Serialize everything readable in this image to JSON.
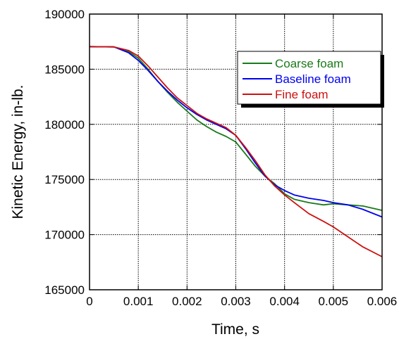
{
  "chart_data": {
    "type": "line",
    "title": "",
    "xlabel": "Time, s",
    "ylabel": "Kinetic Energy, in-lb.",
    "xlim": [
      0,
      0.006
    ],
    "ylim": [
      165000,
      190000
    ],
    "xticks": [
      0,
      0.001,
      0.002,
      0.003,
      0.004,
      0.005,
      0.006
    ],
    "xtick_labels": [
      "0",
      "0.001",
      "0.002",
      "0.003",
      "0.004",
      "0.005",
      "0.006"
    ],
    "yticks": [
      165000,
      170000,
      175000,
      180000,
      185000,
      190000
    ],
    "ytick_labels": [
      "165000",
      "170000",
      "175000",
      "180000",
      "185000",
      "190000"
    ],
    "grid": true,
    "legend_position": "top-right",
    "series": [
      {
        "name": "Coarse foam",
        "color": "#1a7a1a",
        "x": [
          0,
          0.0005,
          0.0008,
          0.001,
          0.0012,
          0.0014,
          0.0016,
          0.0018,
          0.002,
          0.0022,
          0.0024,
          0.0026,
          0.0028,
          0.003,
          0.0032,
          0.0034,
          0.0036,
          0.0038,
          0.004,
          0.0042,
          0.0045,
          0.0048,
          0.005,
          0.0053,
          0.0056,
          0.006
        ],
        "values": [
          187050,
          187020,
          186600,
          186000,
          185000,
          183900,
          182900,
          182000,
          181200,
          180400,
          179800,
          179300,
          178900,
          178400,
          177300,
          176200,
          175300,
          174600,
          173700,
          173200,
          172900,
          172700,
          172800,
          172700,
          172600,
          172200
        ]
      },
      {
        "name": "Baseline foam",
        "color": "#0000ee",
        "x": [
          0,
          0.0005,
          0.0008,
          0.001,
          0.0012,
          0.0014,
          0.0016,
          0.0018,
          0.002,
          0.0022,
          0.0024,
          0.0026,
          0.0028,
          0.003,
          0.0032,
          0.0034,
          0.0036,
          0.0038,
          0.004,
          0.0042,
          0.0045,
          0.0048,
          0.005,
          0.0053,
          0.0056,
          0.006
        ],
        "values": [
          187050,
          187020,
          186500,
          185800,
          184900,
          183900,
          183000,
          182200,
          181500,
          180900,
          180400,
          180000,
          179600,
          179000,
          177800,
          176500,
          175300,
          174500,
          174000,
          173600,
          173300,
          173100,
          172900,
          172700,
          172300,
          171600
        ]
      },
      {
        "name": "Fine foam",
        "color": "#cc1111",
        "x": [
          0,
          0.0005,
          0.0008,
          0.001,
          0.0012,
          0.0014,
          0.0016,
          0.0018,
          0.002,
          0.0022,
          0.0024,
          0.0026,
          0.0028,
          0.003,
          0.0032,
          0.0034,
          0.0036,
          0.0038,
          0.004,
          0.0042,
          0.0045,
          0.0048,
          0.005,
          0.0053,
          0.0056,
          0.006
        ],
        "values": [
          187050,
          187020,
          186700,
          186200,
          185300,
          184300,
          183300,
          182400,
          181700,
          181000,
          180500,
          180100,
          179700,
          179000,
          177900,
          176700,
          175400,
          174400,
          173600,
          172900,
          171900,
          171200,
          170700,
          169800,
          168900,
          168000
        ]
      }
    ]
  }
}
